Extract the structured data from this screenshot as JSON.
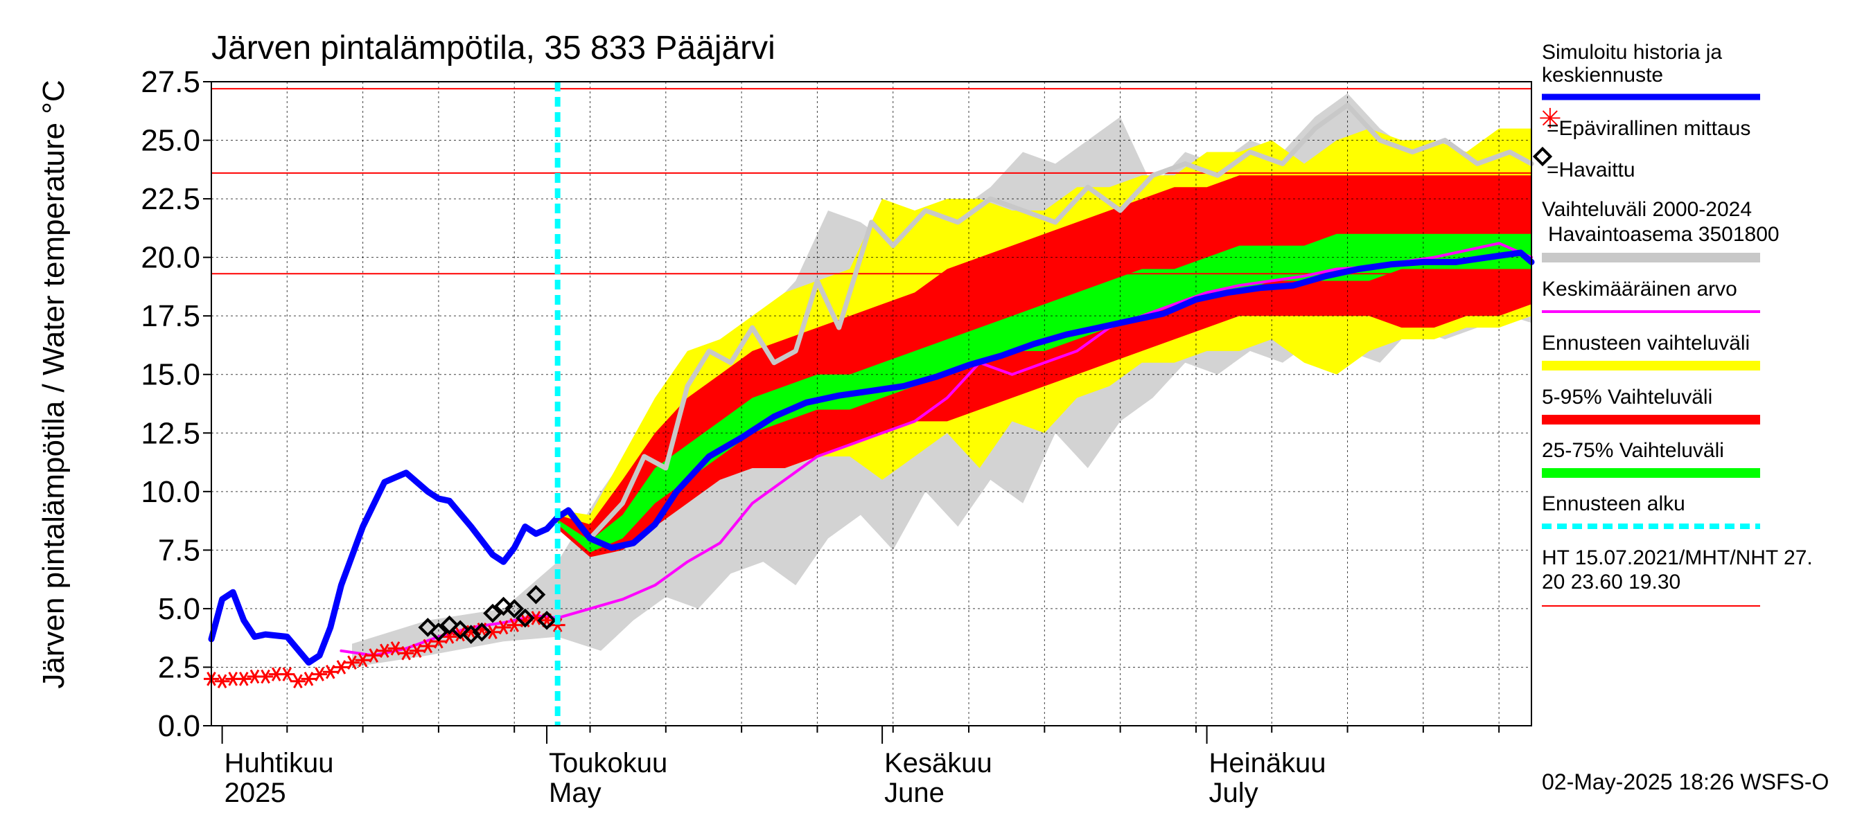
{
  "chart_data": {
    "type": "line",
    "title": "Järven pintalämpötila, 35 833 Pääjärvi",
    "ylabel": "Järven pintalämpötila / Water temperature °C",
    "xlim": [
      "2025-03-31",
      "2025-07-31"
    ],
    "ylim": [
      0,
      27.5
    ],
    "yticks": [
      "0.0",
      "2.5",
      "5.0",
      "7.5",
      "10.0",
      "12.5",
      "15.0",
      "17.5",
      "20.0",
      "22.5",
      "25.0",
      "27.5"
    ],
    "months": [
      {
        "date": "2025-04-01",
        "fi": "Huhtikuu",
        "en": "2025"
      },
      {
        "date": "2025-05-01",
        "fi": "Toukokuu",
        "en": "May"
      },
      {
        "date": "2025-06-01",
        "fi": "Kesäkuu",
        "en": "June"
      },
      {
        "date": "2025-07-01",
        "fi": "Heinäkuu",
        "en": "July"
      }
    ],
    "grid": true,
    "legend_position": "right",
    "forecast_start": "2025-05-02",
    "reference_lines": [
      27.2,
      23.6,
      19.3
    ],
    "historical_range": {
      "x": [
        "2025-04-13",
        "2025-04-20",
        "2025-04-27",
        "2025-05-02",
        "2025-05-06",
        "2025-05-09",
        "2025-05-12",
        "2025-05-15",
        "2025-05-18",
        "2025-05-21",
        "2025-05-24",
        "2025-05-27",
        "2025-05-30",
        "2025-06-02",
        "2025-06-05",
        "2025-06-08",
        "2025-06-11",
        "2025-06-14",
        "2025-06-17",
        "2025-06-20",
        "2025-06-23",
        "2025-06-26",
        "2025-06-29",
        "2025-07-02",
        "2025-07-05",
        "2025-07-08",
        "2025-07-11",
        "2025-07-14",
        "2025-07-17",
        "2025-07-20",
        "2025-07-23",
        "2025-07-26",
        "2025-07-29",
        "2025-07-31"
      ],
      "lower": [
        2.5,
        3.0,
        3.6,
        3.8,
        3.2,
        4.5,
        5.5,
        5.0,
        6.5,
        7.0,
        6.0,
        8.0,
        9.0,
        7.5,
        10.0,
        8.5,
        10.5,
        9.5,
        12.5,
        11.0,
        13.0,
        14.0,
        15.5,
        15.0,
        16.0,
        15.5,
        16.5,
        16.0,
        15.5,
        17.0,
        16.5,
        17.0,
        17.5,
        17.2
      ],
      "upper": [
        3.5,
        4.5,
        5.0,
        7.0,
        10.0,
        12.0,
        14.0,
        15.0,
        16.0,
        17.5,
        19.0,
        22.0,
        21.5,
        20.5,
        21.0,
        22.0,
        23.0,
        24.5,
        24.0,
        25.0,
        26.0,
        23.0,
        24.5,
        24.0,
        25.0,
        24.5,
        26.0,
        27.0,
        25.5,
        24.5,
        25.0,
        24.0,
        25.0,
        24.5
      ]
    },
    "forecast_range": {
      "x": [
        "2025-05-02",
        "2025-05-05",
        "2025-05-08",
        "2025-05-11",
        "2025-05-14",
        "2025-05-17",
        "2025-05-20",
        "2025-05-23",
        "2025-05-26",
        "2025-05-29",
        "2025-06-01",
        "2025-06-04",
        "2025-06-07",
        "2025-06-10",
        "2025-06-13",
        "2025-06-16",
        "2025-06-19",
        "2025-06-22",
        "2025-06-25",
        "2025-06-28",
        "2025-07-01",
        "2025-07-04",
        "2025-07-07",
        "2025-07-10",
        "2025-07-13",
        "2025-07-16",
        "2025-07-19",
        "2025-07-22",
        "2025-07-25",
        "2025-07-28",
        "2025-07-31"
      ],
      "min": [
        8.6,
        8.0,
        8.5,
        9.5,
        10.5,
        11.5,
        12.0,
        11.0,
        11.5,
        11.5,
        10.5,
        11.5,
        12.5,
        11.0,
        13.0,
        12.5,
        14.0,
        14.5,
        15.5,
        15.5,
        16.0,
        16.0,
        16.5,
        15.5,
        15.0,
        16.0,
        16.5,
        16.5,
        17.0,
        17.0,
        17.5
      ],
      "p5": [
        8.4,
        7.2,
        7.5,
        8.5,
        9.5,
        10.5,
        11.0,
        11.0,
        11.5,
        12.0,
        12.5,
        13.0,
        13.0,
        13.5,
        14.0,
        14.5,
        15.0,
        15.5,
        16.0,
        16.5,
        17.0,
        17.5,
        17.5,
        17.5,
        17.5,
        17.5,
        17.0,
        17.0,
        17.5,
        17.5,
        18.0
      ],
      "p25": [
        8.6,
        7.4,
        8.0,
        9.5,
        10.5,
        11.5,
        12.5,
        13.0,
        13.5,
        13.5,
        14.0,
        14.5,
        15.0,
        15.5,
        16.0,
        16.0,
        16.5,
        17.0,
        17.5,
        18.0,
        18.5,
        18.5,
        19.0,
        19.0,
        19.0,
        19.0,
        19.5,
        19.5,
        19.5,
        19.5,
        19.5
      ],
      "p75": [
        8.8,
        7.9,
        9.0,
        11.0,
        12.0,
        13.0,
        14.0,
        14.5,
        15.0,
        15.0,
        15.5,
        16.0,
        16.5,
        17.0,
        17.5,
        18.0,
        18.5,
        19.0,
        19.5,
        19.5,
        20.0,
        20.5,
        20.5,
        20.5,
        21.0,
        21.0,
        21.0,
        21.0,
        21.0,
        21.0,
        21.0
      ],
      "p95": [
        9.0,
        8.6,
        10.5,
        12.5,
        14.0,
        15.0,
        16.0,
        16.5,
        17.0,
        17.5,
        18.0,
        18.5,
        19.5,
        20.0,
        20.5,
        21.0,
        21.5,
        22.0,
        22.5,
        23.0,
        23.0,
        23.5,
        23.5,
        23.5,
        23.5,
        23.5,
        23.5,
        23.5,
        23.5,
        23.5,
        23.5
      ],
      "max": [
        9.2,
        9.0,
        11.5,
        14.0,
        16.0,
        16.5,
        17.5,
        18.5,
        19.0,
        19.5,
        22.5,
        22.0,
        22.5,
        22.5,
        22.0,
        22.0,
        23.0,
        23.0,
        23.5,
        23.5,
        24.5,
        24.5,
        25.0,
        24.0,
        25.0,
        25.5,
        25.0,
        25.0,
        24.5,
        25.5,
        25.5
      ]
    },
    "series": [
      {
        "name": "Simuloitu historia ja keskiennuste",
        "color": "#0000ff",
        "x": [
          "2025-03-31",
          "2025-04-01",
          "2025-04-02",
          "2025-04-03",
          "2025-04-04",
          "2025-04-05",
          "2025-04-07",
          "2025-04-09",
          "2025-04-10",
          "2025-04-11",
          "2025-04-12",
          "2025-04-14",
          "2025-04-16",
          "2025-04-18",
          "2025-04-20",
          "2025-04-21",
          "2025-04-22",
          "2025-04-24",
          "2025-04-26",
          "2025-04-27",
          "2025-04-28",
          "2025-04-29",
          "2025-04-30",
          "2025-05-01",
          "2025-05-02",
          "2025-05-03",
          "2025-05-05",
          "2025-05-07",
          "2025-05-09",
          "2025-05-11",
          "2025-05-13",
          "2025-05-16",
          "2025-05-19",
          "2025-05-22",
          "2025-05-25",
          "2025-05-28",
          "2025-05-31",
          "2025-06-03",
          "2025-06-06",
          "2025-06-09",
          "2025-06-12",
          "2025-06-15",
          "2025-06-18",
          "2025-06-21",
          "2025-06-24",
          "2025-06-27",
          "2025-06-30",
          "2025-07-03",
          "2025-07-06",
          "2025-07-09",
          "2025-07-12",
          "2025-07-15",
          "2025-07-18",
          "2025-07-21",
          "2025-07-24",
          "2025-07-27",
          "2025-07-30",
          "2025-07-31"
        ],
        "y": [
          3.7,
          5.4,
          5.7,
          4.5,
          3.8,
          3.9,
          3.8,
          2.7,
          3.0,
          4.2,
          6.0,
          8.5,
          10.4,
          10.8,
          10.0,
          9.7,
          9.6,
          8.5,
          7.3,
          7.0,
          7.6,
          8.5,
          8.2,
          8.4,
          8.9,
          9.2,
          8.0,
          7.6,
          7.8,
          8.6,
          10.0,
          11.5,
          12.3,
          13.2,
          13.8,
          14.1,
          14.3,
          14.5,
          14.9,
          15.4,
          15.8,
          16.3,
          16.7,
          17.0,
          17.3,
          17.6,
          18.2,
          18.5,
          18.7,
          18.8,
          19.2,
          19.5,
          19.7,
          19.8,
          19.8,
          20.0,
          20.2,
          19.8
        ]
      },
      {
        "name": "Vaihteluväli 2000-2024 Havaintoasema 3501800",
        "color": "#c8c8c8",
        "x": [
          "2025-05-05",
          "2025-05-08",
          "2025-05-10",
          "2025-05-12",
          "2025-05-14",
          "2025-05-16",
          "2025-05-18",
          "2025-05-20",
          "2025-05-22",
          "2025-05-24",
          "2025-05-26",
          "2025-05-28",
          "2025-05-31",
          "2025-06-02",
          "2025-06-05",
          "2025-06-08",
          "2025-06-11",
          "2025-06-14",
          "2025-06-17",
          "2025-06-20",
          "2025-06-23",
          "2025-06-26",
          "2025-06-29",
          "2025-07-02",
          "2025-07-05",
          "2025-07-08",
          "2025-07-11",
          "2025-07-14",
          "2025-07-17",
          "2025-07-20",
          "2025-07-23",
          "2025-07-26",
          "2025-07-29",
          "2025-07-31"
        ],
        "y": [
          8.0,
          9.5,
          11.5,
          11.0,
          14.5,
          16.0,
          15.5,
          17.0,
          15.5,
          16.0,
          19.0,
          17.0,
          21.5,
          20.5,
          22.0,
          21.5,
          22.5,
          22.0,
          21.5,
          23.0,
          22.0,
          23.5,
          24.0,
          23.5,
          24.5,
          24.0,
          25.5,
          26.5,
          25.0,
          24.5,
          25.0,
          24.0,
          24.5,
          24.0
        ]
      },
      {
        "name": "Keskimääräinen arvo",
        "color": "#ff00ff",
        "x": [
          "2025-04-12",
          "2025-04-15",
          "2025-04-18",
          "2025-04-21",
          "2025-04-24",
          "2025-04-27",
          "2025-04-30",
          "2025-05-02",
          "2025-05-05",
          "2025-05-08",
          "2025-05-11",
          "2025-05-14",
          "2025-05-17",
          "2025-05-20",
          "2025-05-23",
          "2025-05-26",
          "2025-05-29",
          "2025-06-01",
          "2025-06-04",
          "2025-06-07",
          "2025-06-10",
          "2025-06-13",
          "2025-06-16",
          "2025-06-19",
          "2025-06-22",
          "2025-06-25",
          "2025-06-28",
          "2025-07-01",
          "2025-07-04",
          "2025-07-07",
          "2025-07-10",
          "2025-07-13",
          "2025-07-16",
          "2025-07-19",
          "2025-07-22",
          "2025-07-25",
          "2025-07-28",
          "2025-07-31"
        ],
        "y": [
          3.2,
          3.0,
          3.3,
          3.8,
          4.2,
          4.4,
          4.7,
          4.6,
          5.0,
          5.4,
          6.0,
          7.0,
          7.8,
          9.5,
          10.5,
          11.5,
          12.0,
          12.5,
          13.0,
          14.0,
          15.5,
          15.0,
          15.5,
          16.0,
          17.0,
          17.5,
          18.0,
          18.5,
          18.8,
          19.0,
          19.2,
          19.5,
          19.6,
          19.8,
          20.0,
          20.3,
          20.6,
          20.0
        ]
      },
      {
        "name": "=Epävirallinen mittaus",
        "color": "#ff0000",
        "x": [
          "2025-03-31",
          "2025-04-01",
          "2025-04-02",
          "2025-04-03",
          "2025-04-04",
          "2025-04-05",
          "2025-04-06",
          "2025-04-07",
          "2025-04-08",
          "2025-04-09",
          "2025-04-10",
          "2025-04-11",
          "2025-04-12",
          "2025-04-13",
          "2025-04-14",
          "2025-04-15",
          "2025-04-16",
          "2025-04-17",
          "2025-04-18",
          "2025-04-19",
          "2025-04-20",
          "2025-04-21",
          "2025-04-22",
          "2025-04-23",
          "2025-04-24",
          "2025-04-25",
          "2025-04-26",
          "2025-04-27",
          "2025-04-28",
          "2025-04-29",
          "2025-04-30",
          "2025-05-01",
          "2025-05-02"
        ],
        "y": [
          2.0,
          1.9,
          2.0,
          2.0,
          2.1,
          2.1,
          2.2,
          2.2,
          1.9,
          2.0,
          2.2,
          2.3,
          2.5,
          2.7,
          2.8,
          3.0,
          3.2,
          3.3,
          3.1,
          3.2,
          3.4,
          3.6,
          3.8,
          3.9,
          4.0,
          4.1,
          4.0,
          4.2,
          4.3,
          4.5,
          4.6,
          4.5,
          4.3
        ]
      },
      {
        "name": "=Havaittu",
        "color": "#000000",
        "x": [
          "2025-04-20",
          "2025-04-21",
          "2025-04-22",
          "2025-04-23",
          "2025-04-24",
          "2025-04-25",
          "2025-04-26",
          "2025-04-27",
          "2025-04-28",
          "2025-04-29",
          "2025-04-30",
          "2025-05-01"
        ],
        "y": [
          4.2,
          4.0,
          4.3,
          4.1,
          3.9,
          4.0,
          4.8,
          5.1,
          5.0,
          4.6,
          5.6,
          4.5
        ]
      }
    ]
  },
  "legend": {
    "sim": "Simuloitu historia ja keskiennuste",
    "unofficial": "=Epävirallinen mittaus",
    "observed": "=Havaittu",
    "range_title": "Vaihteluväli 2000-2024",
    "range_station": "Havaintoasema 3501800",
    "mean": "Keskimääräinen arvo",
    "forecast_range": "Ennusteen vaihteluväli",
    "p5_95": "5-95% Vaihteluväli",
    "p25_75": "25-75% Vaihteluväli",
    "forecast_start": "Ennusteen alku",
    "ht_line1": "HT 15.07.2021/MHT/NHT 27.",
    "ht_line2": "20 23.60 19.30",
    "colors": {
      "sim": "#0000ff",
      "unofficial": "#ff0000",
      "observed": "#000000",
      "hist_range": "#c8c8c8",
      "mean": "#ff00ff",
      "forecast_range": "#ffff00",
      "p5_95": "#ff0000",
      "p25_75": "#00ff00",
      "forecast_start": "#00ffff",
      "ht": "#ff0000"
    }
  },
  "footer": "02-May-2025 18:26 WSFS-O"
}
